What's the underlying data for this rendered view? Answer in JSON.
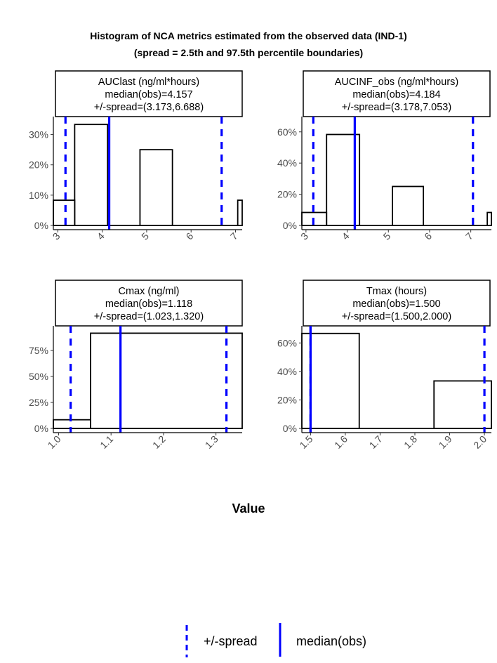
{
  "title_line1": "Histogram of NCA metrics estimated from the observed data (IND-1)",
  "title_line2": "(spread = 2.5th and 97.5th percentile boundaries)",
  "xlabel": "Value",
  "colors": {
    "spread": "#0000ff",
    "median": "#0000ff",
    "bars": "#000000"
  },
  "legend": {
    "position": "bottom",
    "items": [
      {
        "label": "+/-spread",
        "style": "dashed",
        "color": "#0000ff"
      },
      {
        "label": "median(obs)",
        "style": "solid",
        "color": "#0000ff"
      }
    ]
  },
  "chart_data": [
    {
      "type": "bar",
      "strip": [
        "AUClast (ng/ml*hours)",
        "median(obs)=4.157",
        "+/-spread=(3.173,6.688)"
      ],
      "xlim": [
        2.9,
        7.15
      ],
      "ylim": [
        0,
        0.35
      ],
      "xticks": [
        3,
        4,
        5,
        6,
        7
      ],
      "xtick_labels": [
        "3",
        "4",
        "5",
        "6",
        "7"
      ],
      "yticks": [
        0,
        0.1,
        0.2,
        0.3
      ],
      "ytick_labels": [
        "0%",
        "10%",
        "20%",
        "30%"
      ],
      "bins": [
        {
          "x0": 2.9,
          "x1": 3.38,
          "y": 0.0833
        },
        {
          "x0": 3.38,
          "x1": 4.12,
          "y": 0.3333
        },
        {
          "x0": 4.12,
          "x1": 4.85,
          "y": 0
        },
        {
          "x0": 4.85,
          "x1": 5.58,
          "y": 0.25
        },
        {
          "x0": 5.58,
          "x1": 6.32,
          "y": 0
        },
        {
          "x0": 6.32,
          "x1": 7.05,
          "y": 0
        },
        {
          "x0": 7.05,
          "x1": 7.15,
          "y": 0.0833
        }
      ],
      "median": 4.157,
      "spread": [
        3.173,
        6.688
      ]
    },
    {
      "type": "bar",
      "strip": [
        "AUCINF_obs (ng/ml*hours)",
        "median(obs)=4.184",
        "+/-spread=(3.178,7.053)"
      ],
      "xlim": [
        2.9,
        7.5
      ],
      "ylim": [
        0,
        0.68
      ],
      "xticks": [
        3,
        4,
        5,
        6,
        7
      ],
      "xtick_labels": [
        "3",
        "4",
        "5",
        "6",
        "7"
      ],
      "yticks": [
        0,
        0.2,
        0.4,
        0.6
      ],
      "ytick_labels": [
        "0%",
        "20%",
        "40%",
        "60%"
      ],
      "bins": [
        {
          "x0": 2.9,
          "x1": 3.5,
          "y": 0.0833
        },
        {
          "x0": 3.5,
          "x1": 4.3,
          "y": 0.5833
        },
        {
          "x0": 4.3,
          "x1": 5.1,
          "y": 0
        },
        {
          "x0": 5.1,
          "x1": 5.85,
          "y": 0.25
        },
        {
          "x0": 5.85,
          "x1": 6.6,
          "y": 0
        },
        {
          "x0": 6.6,
          "x1": 7.4,
          "y": 0
        },
        {
          "x0": 7.4,
          "x1": 7.5,
          "y": 0.0833
        }
      ],
      "median": 4.184,
      "spread": [
        3.178,
        7.053
      ]
    },
    {
      "type": "bar",
      "strip": [
        "Cmax (ng/ml)",
        "median(obs)=1.118",
        "+/-spread=(1.023,1.320)"
      ],
      "xlim": [
        0.99,
        1.35
      ],
      "ylim": [
        0,
        0.96
      ],
      "xticks": [
        1.0,
        1.1,
        1.2,
        1.3
      ],
      "xtick_labels": [
        "1.0",
        "1.1",
        "1.2",
        "1.3"
      ],
      "yticks": [
        0,
        0.25,
        0.5,
        0.75
      ],
      "ytick_labels": [
        "0%",
        "25%",
        "50%",
        "75%"
      ],
      "bins": [
        {
          "x0": 0.99,
          "x1": 1.061,
          "y": 0.0833
        },
        {
          "x0": 1.061,
          "x1": 1.35,
          "y": 0.9167
        }
      ],
      "median": 1.118,
      "spread": [
        1.023,
        1.32
      ]
    },
    {
      "type": "bar",
      "strip": [
        "Tmax (hours)",
        "median(obs)=1.500",
        "+/-spread=(1.500,2.000)"
      ],
      "xlim": [
        1.475,
        2.02
      ],
      "ylim": [
        0,
        0.7
      ],
      "xticks": [
        1.5,
        1.6,
        1.7,
        1.8,
        1.9,
        2.0
      ],
      "xtick_labels": [
        "1.5",
        "1.6",
        "1.7",
        "1.8",
        "1.9",
        "2.0"
      ],
      "yticks": [
        0,
        0.2,
        0.4,
        0.6
      ],
      "ytick_labels": [
        "0%",
        "20%",
        "40%",
        "60%"
      ],
      "bins": [
        {
          "x0": 1.475,
          "x1": 1.64,
          "y": 0.6667
        },
        {
          "x0": 1.64,
          "x1": 1.855,
          "y": 0
        },
        {
          "x0": 1.855,
          "x1": 2.02,
          "y": 0.3333
        }
      ],
      "median": 1.5,
      "spread": [
        1.5,
        2.0
      ]
    }
  ]
}
